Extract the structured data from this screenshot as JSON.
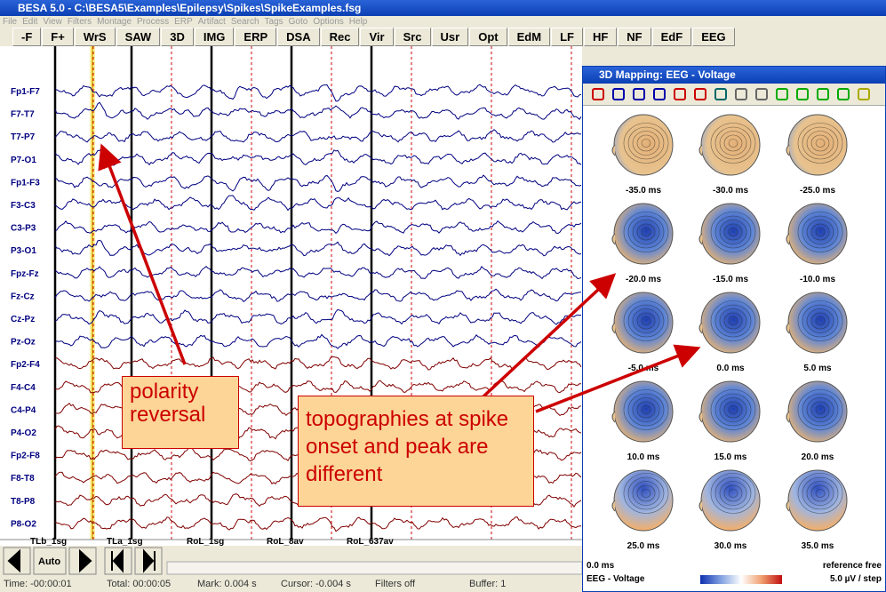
{
  "window_title": "BESA 5.0 - C:\\BESA5\\Examples\\Epilepsy\\Spikes\\SpikeExamples.fsg",
  "menu": [
    "File",
    "Edit",
    "View",
    "Filters",
    "Montage",
    "Process",
    "ERP",
    "Artifact",
    "Search",
    "Tags",
    "Goto",
    "Options",
    "Help"
  ],
  "toolbar": [
    "-F",
    "F+",
    "WrS",
    "SAW",
    "3D",
    "IMG",
    "ERP",
    "DSA",
    "Rec",
    "Vir",
    "Src",
    "Usr",
    "Opt",
    "EdM",
    "LF",
    "HF",
    "NF",
    "EdF",
    "EEG"
  ],
  "channels": [
    "Fp1-F7",
    "F7-T7",
    "T7-P7",
    "P7-O1",
    "Fp1-F3",
    "F3-C3",
    "C3-P3",
    "P3-O1",
    "Fpz-Fz",
    "Fz-Cz",
    "Cz-Pz",
    "Pz-Oz",
    "Fp2-F4",
    "F4-C4",
    "C4-P4",
    "P4-O2",
    "Fp2-F8",
    "F8-T8",
    "T8-P8",
    "P8-O2"
  ],
  "segments": [
    "TLb_1sg",
    "TLa_1sg",
    "RoL_1sg",
    "RoL_8av",
    "RoL_637av"
  ],
  "nav_auto": "Auto",
  "status": [
    "Time: -00:00:01",
    "Total: 00:00:05",
    "Mark: 0.004 s",
    "Cursor: -0.004 s",
    "Filters off",
    "Buffer: 1"
  ],
  "mapping": {
    "title": "3D Mapping: EEG - Voltage",
    "maps": [
      "-35.0 ms",
      "-30.0 ms",
      "-25.0 ms",
      "-20.0 ms",
      "-15.0 ms",
      "-10.0 ms",
      "-5.0 ms",
      "0.0 ms",
      "5.0 ms",
      "10.0 ms",
      "15.0 ms",
      "20.0 ms",
      "25.0 ms",
      "30.0 ms",
      "35.0 ms"
    ],
    "footer": {
      "time": "0.0 ms",
      "reference": "reference free",
      "mode": "EEG - Voltage",
      "scale": "5.0 µV / step"
    }
  },
  "annotations": [
    "polarity reversal",
    "topographies at spike onset and peak are different"
  ]
}
